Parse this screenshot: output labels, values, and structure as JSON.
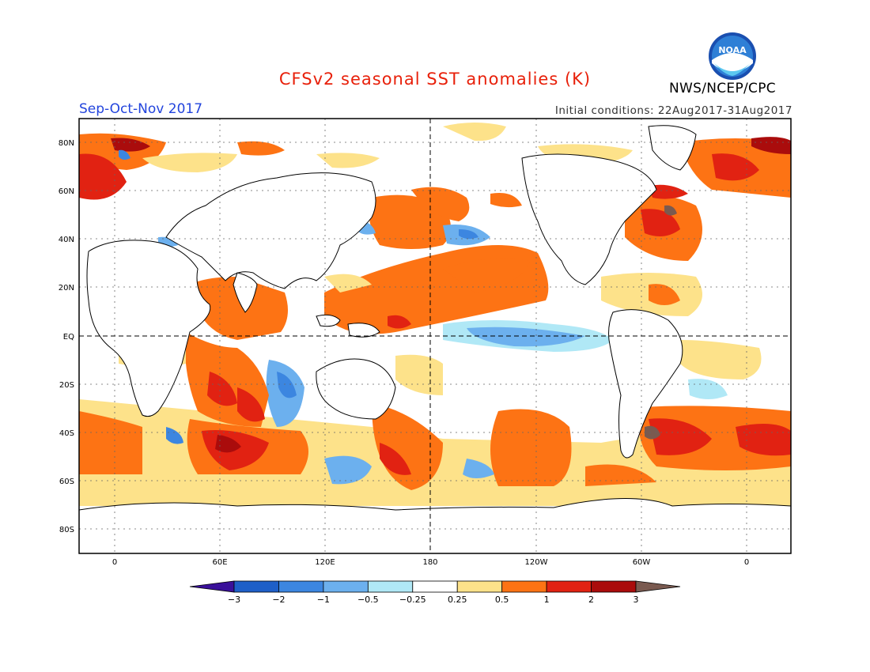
{
  "header": {
    "title": "CFSv2 seasonal SST anomalies (K)",
    "season": "Sep-Oct-Nov 2017",
    "initial_conditions": "Initial conditions: 22Aug2017-31Aug2017",
    "agency": "NWS/NCEP/CPC",
    "logo_text": "NOAA"
  },
  "map": {
    "lat_labels": [
      "80N",
      "60N",
      "40N",
      "20N",
      "EQ",
      "20S",
      "40S",
      "60S",
      "80S"
    ],
    "lon_labels": [
      "0",
      "60E",
      "120E",
      "180",
      "120W",
      "60W",
      "0"
    ]
  },
  "colorbar": {
    "labels": [
      "-3",
      "-2",
      "-1",
      "-0.5",
      "-0.25",
      "0.25",
      "0.5",
      "1",
      "2",
      "3"
    ],
    "colors": [
      "#3a109a",
      "#1e5fc8",
      "#3c86e0",
      "#6cb0ee",
      "#b0e8f6",
      "#ffffff",
      "#fde28a",
      "#fd7314",
      "#e12212",
      "#aa0c0c",
      "#7a5a50"
    ]
  },
  "colors": {
    "warm_mod": "#fde28a",
    "warm_strong": "#fd7314",
    "warm_red": "#e12212",
    "warm_dark": "#aa0c0c",
    "cool_light": "#b0e8f6",
    "cool_mod": "#6cb0ee",
    "cool_strong": "#3c86e0"
  }
}
